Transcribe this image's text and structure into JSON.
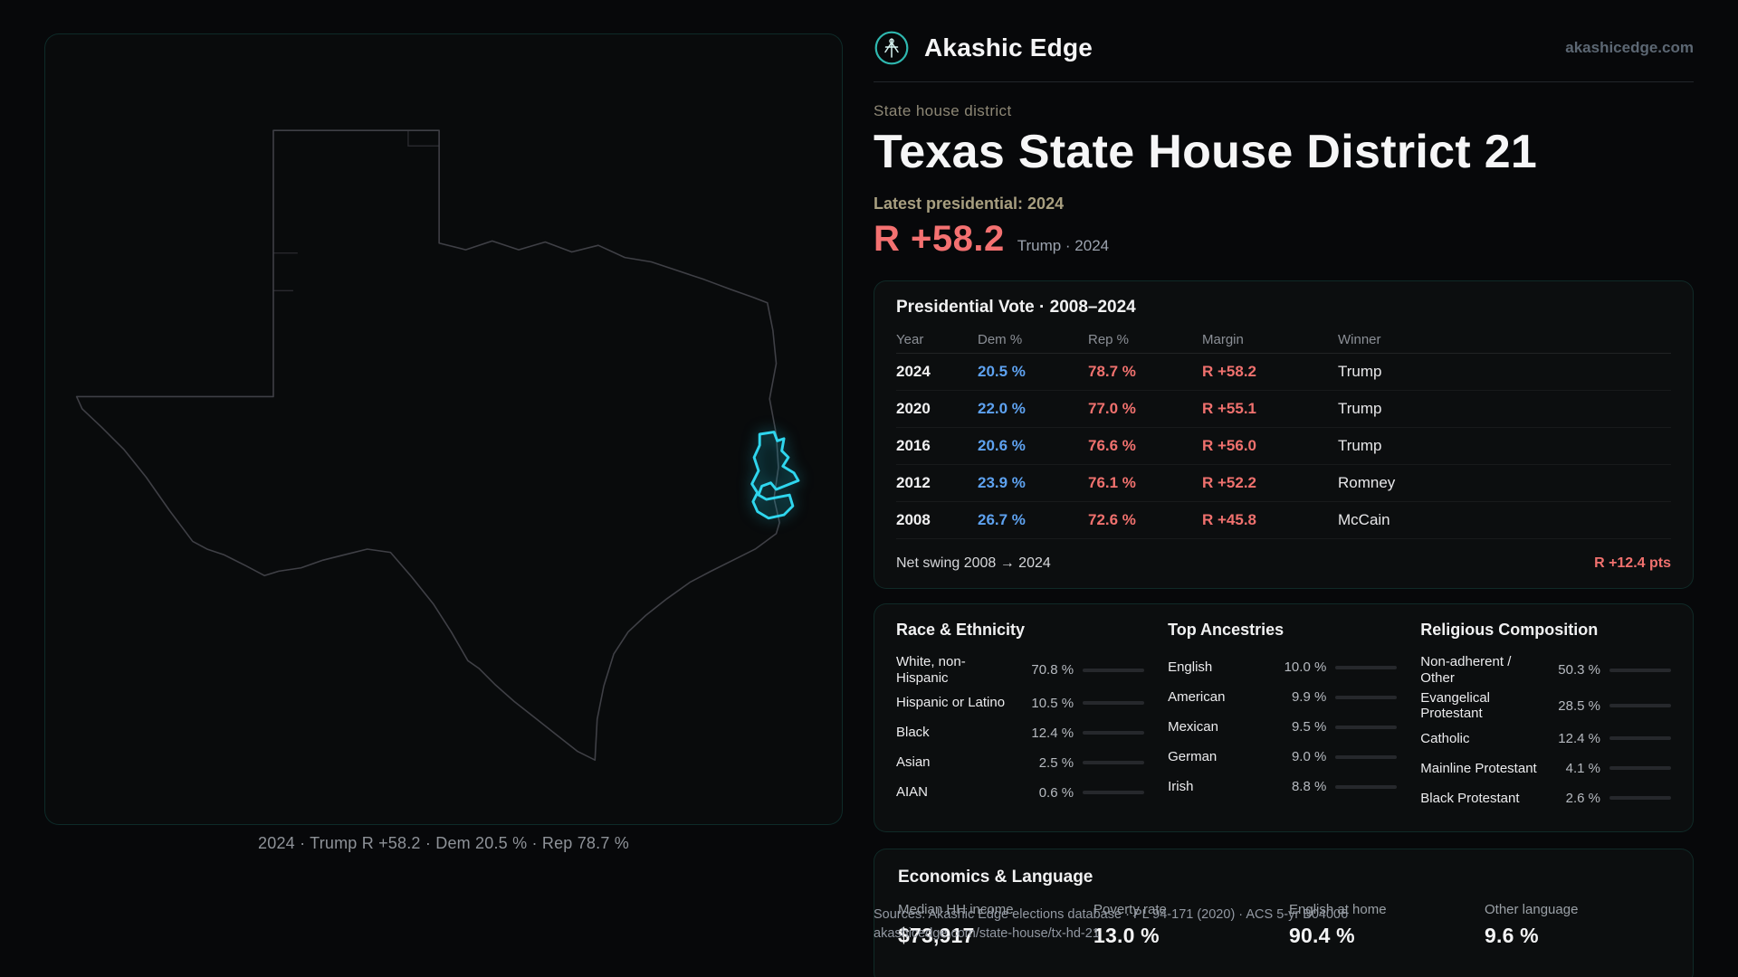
{
  "theme": {
    "accent_cyan": "#2fd6ee",
    "rep_red": "#f0716e",
    "dem_blue": "#5ea2f0",
    "card_border_teal": "rgba(45,212,191,0.14)"
  },
  "header": {
    "brand": "Akashic Edge",
    "site": "akashicedge.com"
  },
  "hero": {
    "eyebrow": "State house district",
    "title": "Texas State House District 21",
    "latest_label": "Latest presidential: 2024",
    "margin_value": "R +58.2",
    "margin_caption": "Trump · 2024"
  },
  "map": {
    "caption": "2024 · Trump R +58.2 · Dem 20.5 % · Rep 78.7 %"
  },
  "presidential": {
    "title": "Presidential Vote · 2008–2024",
    "columns": {
      "year": "Year",
      "dem": "Dem %",
      "rep": "Rep %",
      "margin": "Margin",
      "winner": "Winner"
    },
    "rows": [
      {
        "year": "2024",
        "dem": "20.5 %",
        "rep": "78.7 %",
        "margin": "R +58.2",
        "winner": "Trump"
      },
      {
        "year": "2020",
        "dem": "22.0 %",
        "rep": "77.0 %",
        "margin": "R +55.1",
        "winner": "Trump"
      },
      {
        "year": "2016",
        "dem": "20.6 %",
        "rep": "76.6 %",
        "margin": "R +56.0",
        "winner": "Trump"
      },
      {
        "year": "2012",
        "dem": "23.9 %",
        "rep": "76.1 %",
        "margin": "R +52.2",
        "winner": "Romney"
      },
      {
        "year": "2008",
        "dem": "26.7 %",
        "rep": "72.6 %",
        "margin": "R +45.8",
        "winner": "McCain"
      }
    ],
    "net_swing_label": "Net swing 2008 → 2024",
    "net_swing_value": "R +12.4 pts"
  },
  "demographics": {
    "race": {
      "title": "Race & Ethnicity",
      "rows": [
        {
          "label": "White, non-Hispanic",
          "value": "70.8 %",
          "pct": 70.8,
          "color": "#c9ccd1"
        },
        {
          "label": "Hispanic or Latino",
          "value": "10.5 %",
          "pct": 10.5,
          "color": "#f59e0b"
        },
        {
          "label": "Black",
          "value": "12.4 %",
          "pct": 12.4,
          "color": "#8b5cf6"
        },
        {
          "label": "Asian",
          "value": "2.5 %",
          "pct": 2.5,
          "color": "#34d399"
        },
        {
          "label": "AIAN",
          "value": "0.6 %",
          "pct": 0.6,
          "color": "#ef4444"
        }
      ]
    },
    "ancestry": {
      "title": "Top Ancestries",
      "rows": [
        {
          "label": "English",
          "value": "10.0 %",
          "pct": 10.0,
          "color": "#9aa6b4"
        },
        {
          "label": "American",
          "value": "9.9 %",
          "pct": 9.9,
          "color": "#9aa6b4"
        },
        {
          "label": "Mexican",
          "value": "9.5 %",
          "pct": 9.5,
          "color": "#f59e0b"
        },
        {
          "label": "German",
          "value": "9.0 %",
          "pct": 9.0,
          "color": "#9aa6b4"
        },
        {
          "label": "Irish",
          "value": "8.8 %",
          "pct": 8.8,
          "color": "#9aa6b4"
        }
      ]
    },
    "religion": {
      "title": "Religious Composition",
      "rows": [
        {
          "label": "Non-adherent / Other",
          "value": "50.3 %",
          "pct": 50.3,
          "color": "#a1a6ad"
        },
        {
          "label": "Evangelical Protestant",
          "value": "28.5 %",
          "pct": 28.5,
          "color": "#f47171"
        },
        {
          "label": "Catholic",
          "value": "12.4 %",
          "pct": 12.4,
          "color": "#eab308"
        },
        {
          "label": "Mainline Protestant",
          "value": "4.1 %",
          "pct": 4.1,
          "color": "#3b82f6"
        },
        {
          "label": "Black Protestant",
          "value": "2.6 %",
          "pct": 2.6,
          "color": "#6366f1"
        }
      ]
    }
  },
  "economics": {
    "title": "Economics & Language",
    "stats": [
      {
        "label": "Median HH income",
        "value": "$73,917"
      },
      {
        "label": "Poverty rate",
        "value": "13.0 %"
      },
      {
        "label": "English at home",
        "value": "90.4 %"
      },
      {
        "label": "Other language",
        "value": "9.6 %"
      }
    ]
  },
  "footer": {
    "line1": "Sources: Akashic Edge elections database · PL 94-171 (2020) · ACS 5-yr B04006",
    "line2": "akashicedge.com/state-house/tx-hd-21"
  }
}
